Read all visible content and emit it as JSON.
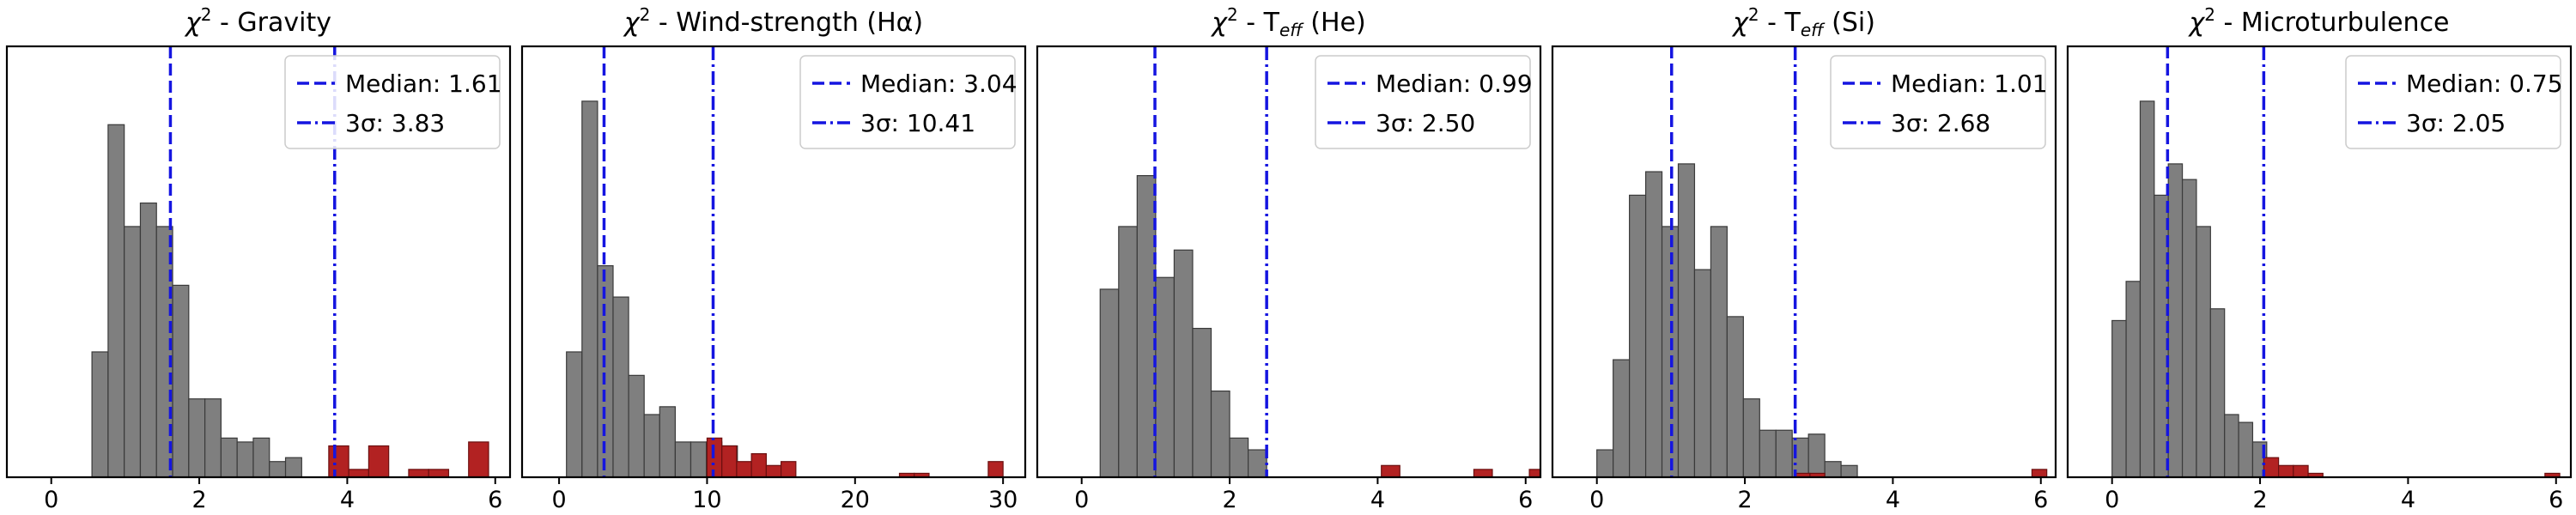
{
  "colors": {
    "bar_fill": "#7f7f7f",
    "bar_edge": "#3a3a3a",
    "outlier_fill": "#b22222",
    "outlier_edge": "#6b0f0f",
    "median_line": "#1515e0",
    "sigma_line": "#1515e0"
  },
  "chart_data": [
    {
      "type": "bar",
      "title": "χ² - Gravity",
      "title_parts": {
        "prefix": "χ",
        "sup": "2",
        "text": " - Gravity",
        "sub": "",
        "suffix": ""
      },
      "xlim": [
        -0.6,
        6.2
      ],
      "ylim": [
        0,
        110
      ],
      "xticks": [
        0,
        2,
        4,
        6
      ],
      "grid": false,
      "legend_position": "top-right",
      "bins_gray": {
        "start": 0.55,
        "width": 0.218,
        "counts": [
          32,
          90,
          64,
          70,
          64,
          49,
          20,
          20,
          10,
          9,
          10,
          4,
          5
        ]
      },
      "bins_red": {
        "start": 3.75,
        "width": 0.27,
        "counts": [
          8,
          2,
          8,
          0,
          2,
          2,
          0,
          9
        ]
      },
      "median": 1.61,
      "sigma3": 3.83,
      "legend": {
        "median_label": "Median: 1.61",
        "sigma_label": "3σ: 3.83"
      }
    },
    {
      "type": "bar",
      "title": "χ² - Wind-strength (Hα)",
      "title_parts": {
        "prefix": "χ",
        "sup": "2",
        "text": " - Wind-strength (Hα)",
        "sub": "",
        "suffix": ""
      },
      "xlim": [
        -2.5,
        31.5
      ],
      "ylim": [
        0,
        110
      ],
      "xticks": [
        0,
        10,
        20,
        30
      ],
      "grid": false,
      "legend_position": "top-right",
      "bins_gray": {
        "start": 0.5,
        "width": 1.05,
        "counts": [
          32,
          96,
          54,
          46,
          26,
          16,
          18,
          9,
          9,
          9,
          8
        ]
      },
      "bins_red": {
        "start": 10.0,
        "width": 1.0,
        "counts": [
          10,
          8,
          4,
          6,
          3,
          4,
          0,
          0,
          0,
          0,
          0,
          0,
          0,
          1,
          1,
          0,
          0,
          0,
          0,
          4
        ]
      },
      "median": 3.04,
      "sigma3": 10.41,
      "legend": {
        "median_label": "Median: 3.04",
        "sigma_label": "3σ: 10.41"
      }
    },
    {
      "type": "bar",
      "title": "χ² - Teff (He)",
      "title_parts": {
        "prefix": "χ",
        "sup": "2",
        "text": " - T",
        "sub": "eff",
        "suffix": " (He)"
      },
      "xlim": [
        -0.6,
        6.2
      ],
      "ylim": [
        0,
        110
      ],
      "xticks": [
        0,
        2,
        4,
        6
      ],
      "grid": false,
      "legend_position": "top-right",
      "bins_gray": {
        "start": 0.25,
        "width": 0.25,
        "counts": [
          48,
          64,
          77,
          51,
          58,
          38,
          22,
          10,
          7
        ]
      },
      "bins_red": {
        "start": 4.05,
        "width": 0.25,
        "counts": [
          3,
          0,
          0,
          0,
          0,
          2,
          0,
          0,
          2
        ]
      },
      "median": 0.99,
      "sigma3": 2.5,
      "legend": {
        "median_label": "Median: 0.99",
        "sigma_label": "3σ: 2.50"
      }
    },
    {
      "type": "bar",
      "title": "χ² - Teff (Si)",
      "title_parts": {
        "prefix": "χ",
        "sup": "2",
        "text": " - T",
        "sub": "eff",
        "suffix": " (Si)"
      },
      "xlim": [
        -0.6,
        6.2
      ],
      "ylim": [
        0,
        110
      ],
      "xticks": [
        0,
        2,
        4,
        6
      ],
      "grid": false,
      "legend_position": "top-right",
      "bins_gray": {
        "start": 0.0,
        "width": 0.22,
        "counts": [
          7,
          30,
          72,
          78,
          64,
          80,
          53,
          64,
          41,
          20,
          12,
          12,
          10,
          11,
          4,
          3
        ]
      },
      "bins_red": {
        "start": 2.68,
        "width": 0.2,
        "counts": [
          1,
          1,
          0,
          0,
          0,
          0,
          0,
          0,
          0,
          0,
          0,
          0,
          0,
          0,
          0,
          0,
          2
        ]
      },
      "median": 1.01,
      "sigma3": 2.68,
      "legend": {
        "median_label": "Median: 1.01",
        "sigma_label": "3σ: 2.68"
      }
    },
    {
      "type": "bar",
      "title": "χ² - Microturbulence",
      "title_parts": {
        "prefix": "χ",
        "sup": "2",
        "text": " - Microturbulence",
        "sub": "",
        "suffix": ""
      },
      "xlim": [
        -0.6,
        6.2
      ],
      "ylim": [
        0,
        110
      ],
      "xticks": [
        0,
        2,
        4,
        6
      ],
      "grid": false,
      "legend_position": "top-right",
      "bins_gray": {
        "start": 0.0,
        "width": 0.19,
        "counts": [
          40,
          50,
          96,
          72,
          80,
          76,
          64,
          43,
          16,
          14,
          9
        ]
      },
      "bins_red": {
        "start": 2.05,
        "width": 0.2,
        "counts": [
          5,
          3,
          3,
          1,
          0,
          0,
          0,
          0,
          0,
          0,
          0,
          0,
          0,
          0,
          0,
          0,
          0,
          0,
          0,
          1
        ]
      },
      "median": 0.75,
      "sigma3": 2.05,
      "legend": {
        "median_label": "Median: 0.75",
        "sigma_label": "3σ: 2.05"
      }
    }
  ]
}
